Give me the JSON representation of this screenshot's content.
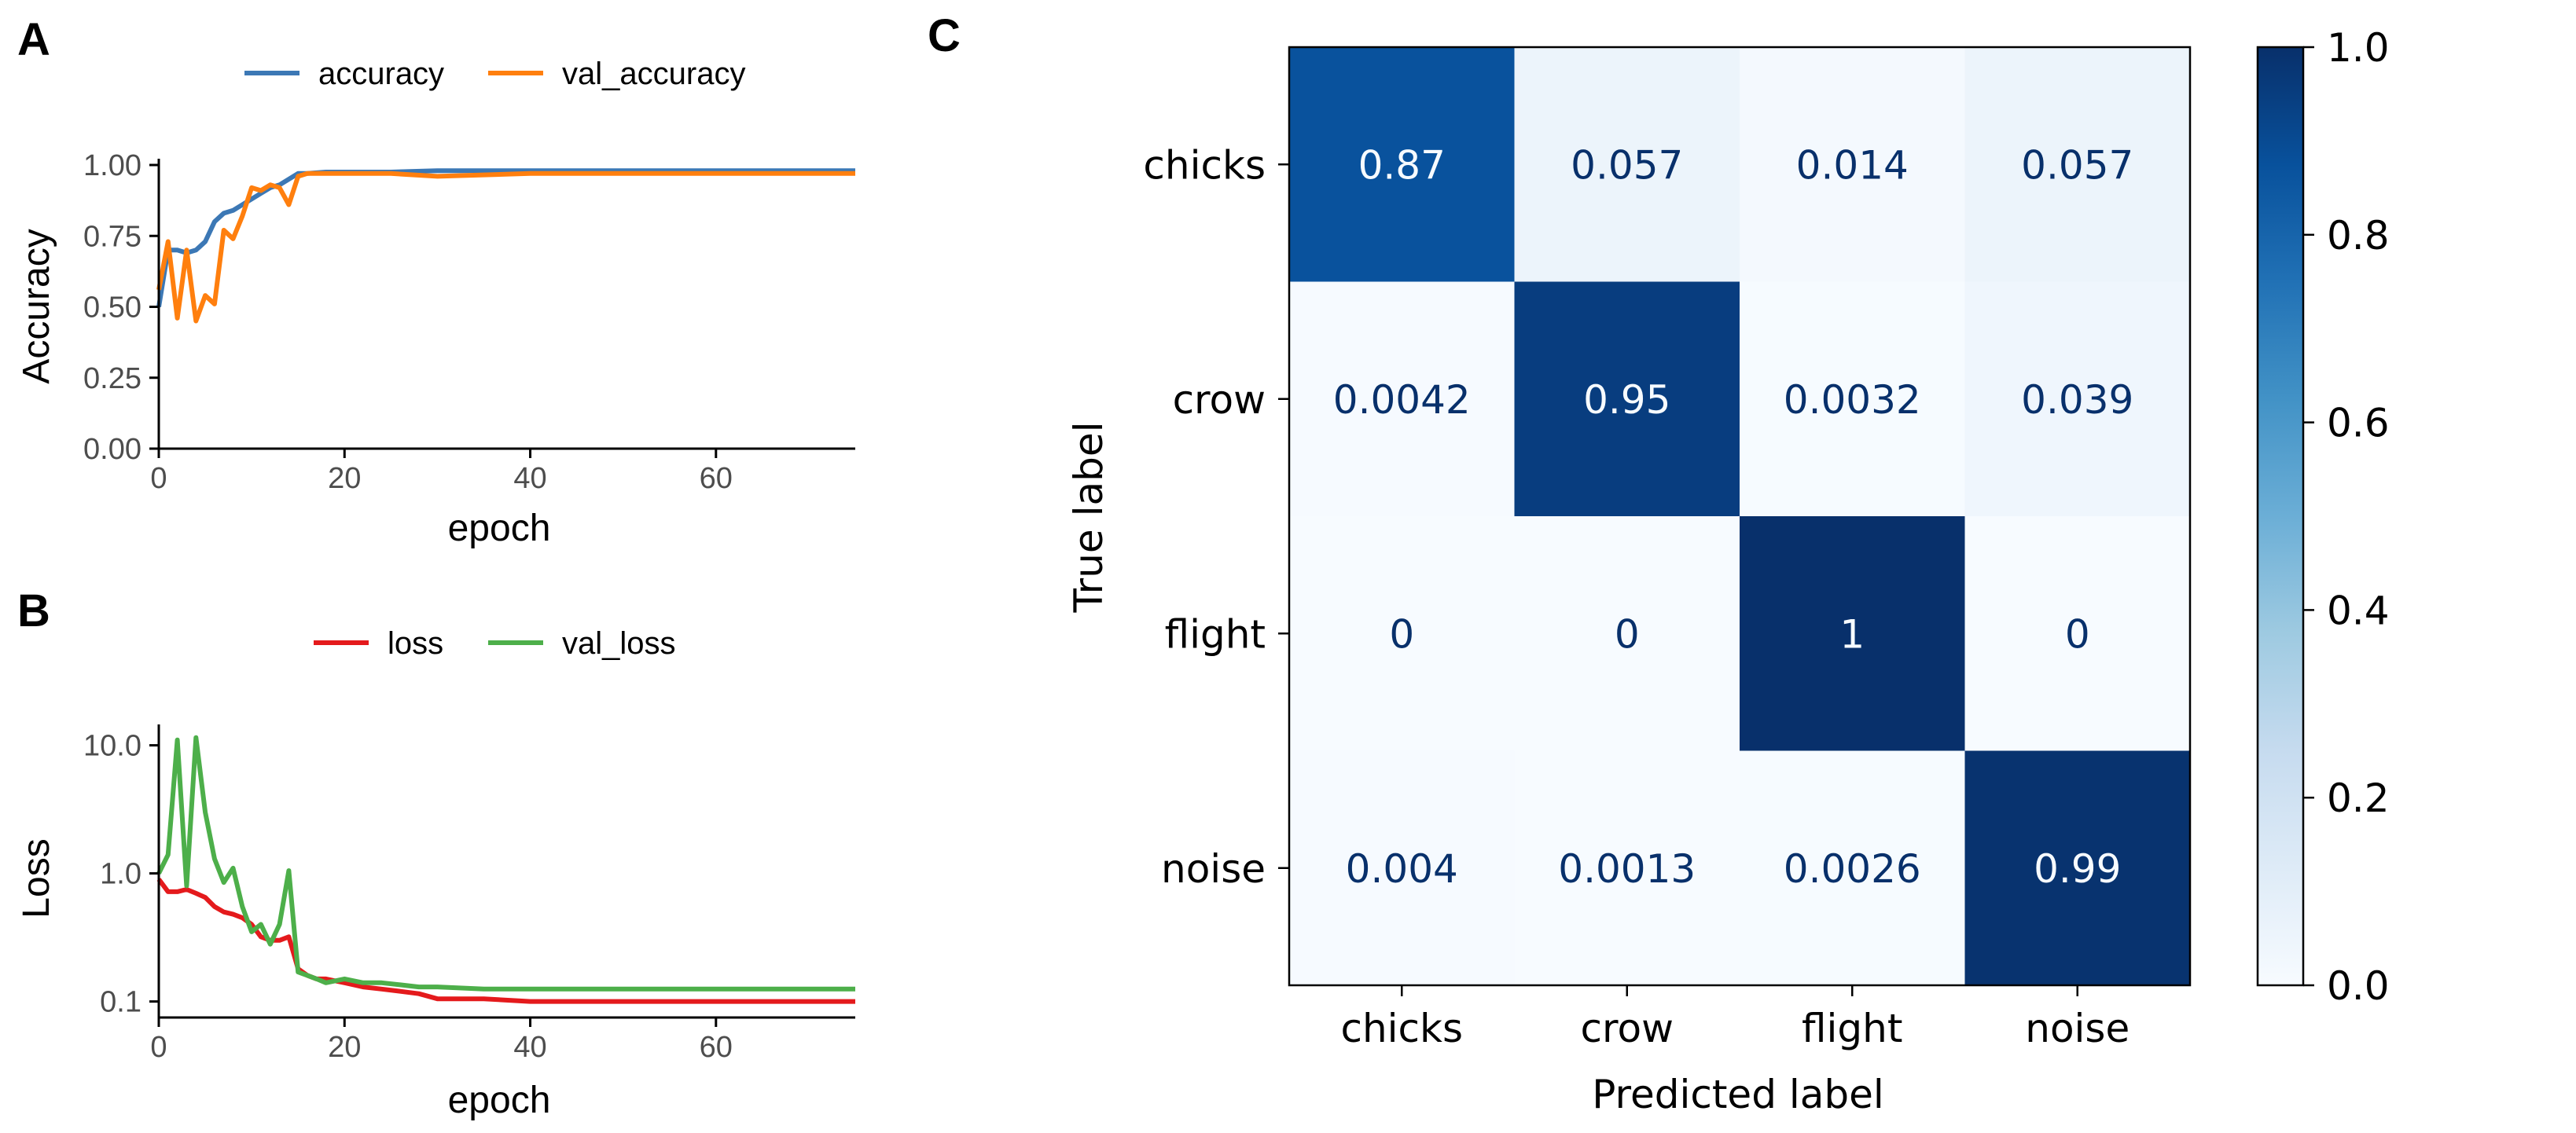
{
  "panels": {
    "a": "A",
    "b": "B",
    "c": "C"
  },
  "chart_data": [
    {
      "type": "line",
      "panel": "A",
      "xlabel": "epoch",
      "ylabel": "Accuracy",
      "xlim": [
        0,
        75
      ],
      "ylim": [
        0,
        1
      ],
      "x_ticks": [
        "0",
        "20",
        "40",
        "60"
      ],
      "y_ticks": [
        "0.00",
        "0.25",
        "0.50",
        "0.75",
        "1.00"
      ],
      "legend_position": "top",
      "series": [
        {
          "name": "accuracy",
          "color": "#3c78b5",
          "x": [
            0,
            1,
            2,
            3,
            4,
            5,
            6,
            7,
            8,
            9,
            10,
            11,
            12,
            13,
            14,
            15,
            16,
            18,
            20,
            25,
            30,
            40,
            50,
            60,
            70,
            75
          ],
          "y": [
            0.5,
            0.7,
            0.7,
            0.69,
            0.7,
            0.73,
            0.8,
            0.83,
            0.84,
            0.86,
            0.88,
            0.9,
            0.92,
            0.93,
            0.95,
            0.97,
            0.97,
            0.975,
            0.975,
            0.975,
            0.98,
            0.98,
            0.98,
            0.98,
            0.98,
            0.98
          ]
        },
        {
          "name": "val_accuracy",
          "color": "#ff7f0e",
          "x": [
            0,
            1,
            2,
            3,
            4,
            5,
            6,
            7,
            8,
            9,
            10,
            11,
            12,
            13,
            14,
            15,
            16,
            18,
            20,
            25,
            30,
            40,
            50,
            60,
            70,
            75
          ],
          "y": [
            0.56,
            0.73,
            0.46,
            0.7,
            0.45,
            0.54,
            0.51,
            0.77,
            0.74,
            0.82,
            0.92,
            0.91,
            0.93,
            0.92,
            0.86,
            0.96,
            0.97,
            0.97,
            0.97,
            0.97,
            0.96,
            0.97,
            0.97,
            0.97,
            0.97,
            0.97
          ]
        }
      ]
    },
    {
      "type": "line",
      "panel": "B",
      "xlabel": "epoch",
      "ylabel": "Loss",
      "xlim": [
        0,
        75
      ],
      "ylim": [
        0.075,
        13
      ],
      "y_scale": "log",
      "x_ticks": [
        "0",
        "20",
        "40",
        "60"
      ],
      "y_ticks": [
        "0.1",
        "1.0",
        "10.0"
      ],
      "y_tick_values": [
        0.1,
        1.0,
        10.0
      ],
      "legend_position": "top",
      "series": [
        {
          "name": "loss",
          "color": "#e41a1c",
          "x": [
            0,
            1,
            2,
            3,
            4,
            5,
            6,
            7,
            8,
            9,
            10,
            11,
            12,
            13,
            14,
            15,
            16,
            17,
            18,
            20,
            22,
            24,
            26,
            28,
            30,
            35,
            40,
            45,
            50,
            55,
            60,
            65,
            70,
            75
          ],
          "y": [
            0.9,
            0.72,
            0.72,
            0.75,
            0.7,
            0.65,
            0.55,
            0.5,
            0.48,
            0.45,
            0.4,
            0.32,
            0.3,
            0.3,
            0.32,
            0.18,
            0.16,
            0.15,
            0.15,
            0.14,
            0.13,
            0.125,
            0.12,
            0.115,
            0.105,
            0.105,
            0.1,
            0.1,
            0.1,
            0.1,
            0.1,
            0.1,
            0.1,
            0.1
          ]
        },
        {
          "name": "val_loss",
          "color": "#4daf4a",
          "x": [
            0,
            1,
            2,
            3,
            4,
            5,
            6,
            7,
            8,
            9,
            10,
            11,
            12,
            13,
            14,
            15,
            16,
            17,
            18,
            20,
            22,
            24,
            26,
            28,
            30,
            35,
            40,
            45,
            50,
            55,
            60,
            65,
            70,
            75
          ],
          "y": [
            1.0,
            1.4,
            11.0,
            0.8,
            11.5,
            3.0,
            1.3,
            0.85,
            1.1,
            0.55,
            0.35,
            0.4,
            0.28,
            0.4,
            1.05,
            0.17,
            0.16,
            0.15,
            0.14,
            0.15,
            0.14,
            0.14,
            0.135,
            0.13,
            0.13,
            0.125,
            0.125,
            0.125,
            0.125,
            0.125,
            0.125,
            0.125,
            0.125,
            0.125
          ]
        }
      ]
    },
    {
      "type": "heatmap",
      "panel": "C",
      "xlabel": "Predicted label",
      "ylabel": "True label",
      "x_categories": [
        "chicks",
        "crow",
        "flight",
        "noise"
      ],
      "y_categories": [
        "chicks",
        "crow",
        "flight",
        "noise"
      ],
      "colormap": "Blues",
      "vmin": 0,
      "vmax": 1,
      "colorbar_ticks": [
        "0.0",
        "0.2",
        "0.4",
        "0.6",
        "0.8",
        "1.0"
      ],
      "colorbar_tick_values": [
        0,
        0.2,
        0.4,
        0.6,
        0.8,
        1.0
      ],
      "values": [
        [
          0.87,
          0.057,
          0.014,
          0.057
        ],
        [
          0.0042,
          0.95,
          0.0032,
          0.039
        ],
        [
          0,
          0,
          1,
          0
        ],
        [
          0.004,
          0.0013,
          0.0026,
          0.99
        ]
      ],
      "labels": [
        [
          "0.87",
          "0.057",
          "0.014",
          "0.057"
        ],
        [
          "0.0042",
          "0.95",
          "0.0032",
          "0.039"
        ],
        [
          "0",
          "0",
          "1",
          "0"
        ],
        [
          "0.004",
          "0.0013",
          "0.0026",
          "0.99"
        ]
      ]
    }
  ]
}
